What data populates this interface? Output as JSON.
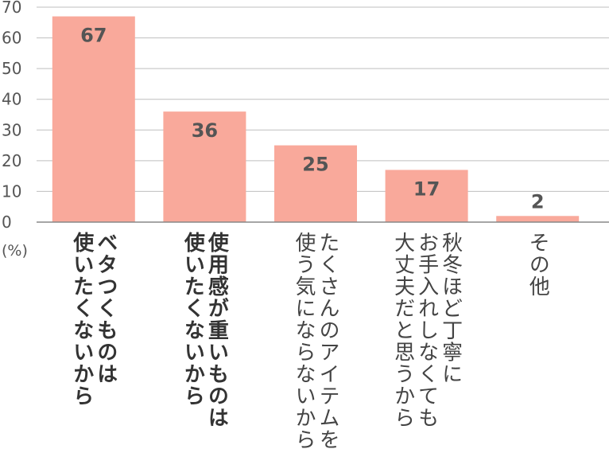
{
  "chart_data": {
    "type": "bar",
    "unit_label": "(%)",
    "categories": [
      {
        "lines": [
          "ベタつくものは",
          "使いたくないから"
        ],
        "emphasis": true
      },
      {
        "lines": [
          "使用感が重いものは",
          "使いたくないから"
        ],
        "emphasis": true
      },
      {
        "lines": [
          "たくさんのアイテムを",
          "使う気にならないから"
        ],
        "emphasis": false
      },
      {
        "lines": [
          "秋冬ほど丁寧に",
          "お手入れしなくても",
          "大丈夫だと思うから"
        ],
        "emphasis": false
      },
      {
        "lines": [
          "その他"
        ],
        "emphasis": false
      }
    ],
    "values": [
      67,
      36,
      25,
      17,
      2
    ],
    "ylim": [
      0,
      70
    ],
    "yticks": [
      0,
      10,
      20,
      30,
      40,
      50,
      60,
      70
    ],
    "grid": true,
    "colors": {
      "bar": "#f9a99b",
      "grid": "#bfbfbf",
      "axis": "#888888"
    }
  }
}
